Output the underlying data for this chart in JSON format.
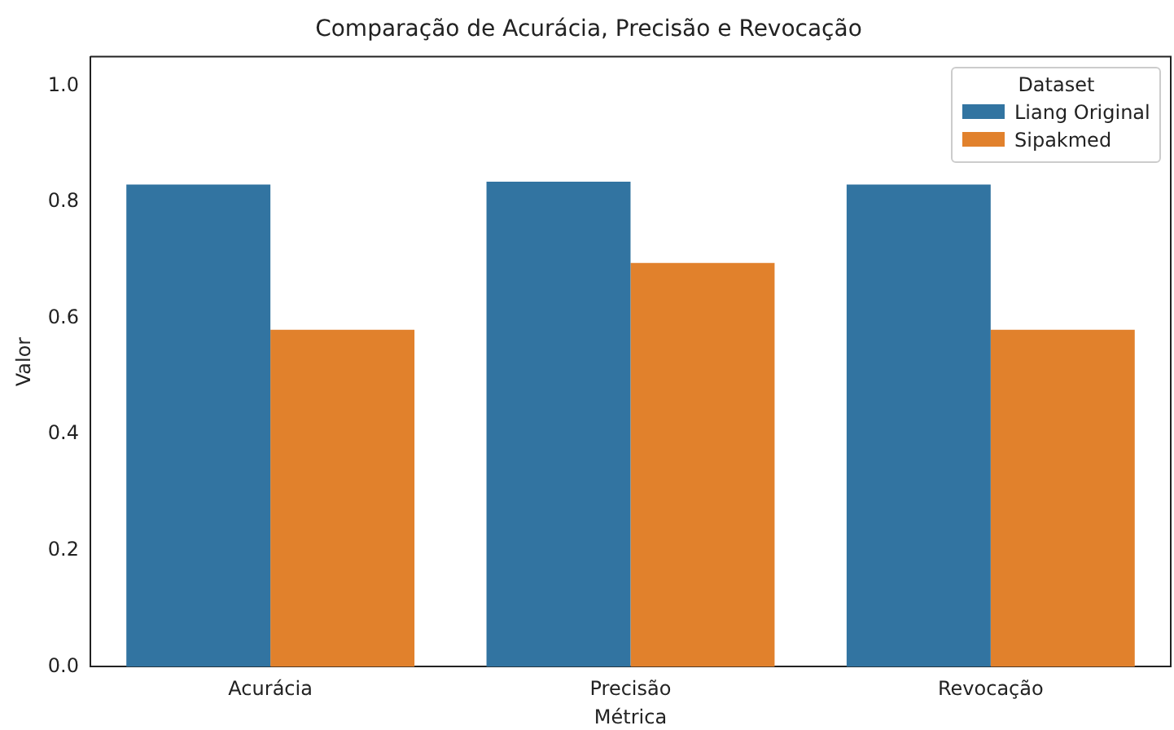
{
  "chart_data": {
    "type": "bar",
    "title": "Comparação de Acurácia, Precisão e Revocação",
    "xlabel": "Métrica",
    "ylabel": "Valor",
    "legend_title": "Dataset",
    "legend": "top right",
    "grid": false,
    "categories": [
      "Acurácia",
      "Precisão",
      "Revocação"
    ],
    "series": [
      {
        "name": "Liang Original",
        "color": "#3274a1",
        "values": [
          0.83,
          0.835,
          0.83
        ]
      },
      {
        "name": "Sipakmed",
        "color": "#e1812c",
        "values": [
          0.58,
          0.695,
          0.58
        ]
      }
    ],
    "ylim": [
      0,
      1.05
    ],
    "yticks": [
      {
        "value": 0,
        "label": "0.0"
      },
      {
        "value": 0.2,
        "label": "0.2"
      },
      {
        "value": 0.4,
        "label": "0.4"
      },
      {
        "value": 0.6,
        "label": "0.6"
      },
      {
        "value": 0.8,
        "label": "0.8"
      },
      {
        "value": 1,
        "label": "1.0"
      }
    ]
  }
}
